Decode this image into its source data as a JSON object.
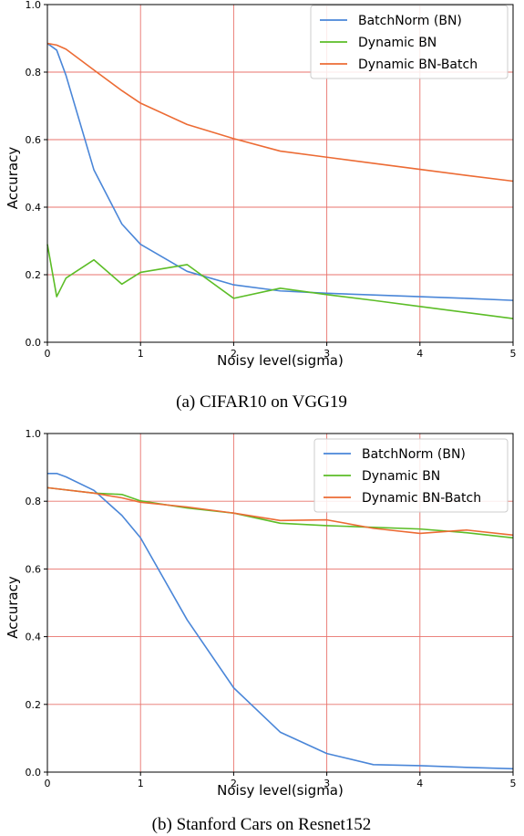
{
  "chart_data": [
    {
      "type": "line",
      "caption": "(a) CIFAR10 on VGG19",
      "xlabel": "Noisy level(sigma)",
      "ylabel": "Accuracy",
      "xlim": [
        0,
        5
      ],
      "ylim": [
        0,
        1.0
      ],
      "xticks": [
        "0",
        "1",
        "2",
        "3",
        "4",
        "5"
      ],
      "yticks": [
        "0.0",
        "0.2",
        "0.4",
        "0.6",
        "0.8",
        "1.0"
      ],
      "grid": true,
      "legend_position": "top-right",
      "series": [
        {
          "name": "BatchNorm (BN)",
          "color": "#4a86d8",
          "x": [
            0,
            0.1,
            0.2,
            0.5,
            0.8,
            1.0,
            1.5,
            2.0,
            2.5,
            3.0,
            3.5,
            4.0,
            4.5,
            5.0
          ],
          "y": [
            0.885,
            0.865,
            0.79,
            0.51,
            0.35,
            0.29,
            0.21,
            0.17,
            0.152,
            0.145,
            0.14,
            0.135,
            0.13,
            0.124
          ]
        },
        {
          "name": "Dynamic BN",
          "color": "#5cbd27",
          "x": [
            0,
            0.1,
            0.2,
            0.5,
            0.8,
            1.0,
            1.5,
            2.0,
            2.5,
            3.0,
            3.5,
            4.0,
            4.5,
            5.0
          ],
          "y": [
            0.29,
            0.135,
            0.19,
            0.244,
            0.172,
            0.207,
            0.23,
            0.13,
            0.16,
            0.141,
            0.124,
            0.106,
            0.088,
            0.07
          ]
        },
        {
          "name": "Dynamic BN-Batch",
          "color": "#ec6b34",
          "x": [
            0,
            0.1,
            0.2,
            0.5,
            0.8,
            1.0,
            1.5,
            2.0,
            2.5,
            3.0,
            3.5,
            4.0,
            4.5,
            5.0
          ],
          "y": [
            0.885,
            0.88,
            0.868,
            0.806,
            0.745,
            0.708,
            0.645,
            0.603,
            0.566,
            0.548,
            0.53,
            0.512,
            0.494,
            0.477
          ]
        }
      ]
    },
    {
      "type": "line",
      "caption": "(b) Stanford Cars on Resnet152",
      "xlabel": "Noisy level(sigma)",
      "ylabel": "Accuracy",
      "xlim": [
        0,
        5
      ],
      "ylim": [
        0,
        1.0
      ],
      "xticks": [
        "0",
        "1",
        "2",
        "3",
        "4",
        "5"
      ],
      "yticks": [
        "0.0",
        "0.2",
        "0.4",
        "0.6",
        "0.8",
        "1.0"
      ],
      "grid": true,
      "legend_position": "top-right",
      "series": [
        {
          "name": "BatchNorm (BN)",
          "color": "#4a86d8",
          "x": [
            0,
            0.1,
            0.2,
            0.5,
            0.8,
            1.0,
            1.5,
            2.0,
            2.5,
            3.0,
            3.5,
            4.0,
            4.5,
            5.0
          ],
          "y": [
            0.882,
            0.882,
            0.872,
            0.832,
            0.758,
            0.692,
            0.45,
            0.249,
            0.118,
            0.055,
            0.022,
            0.019,
            0.014,
            0.01
          ]
        },
        {
          "name": "Dynamic BN",
          "color": "#5cbd27",
          "x": [
            0,
            0.5,
            0.8,
            1.0,
            1.5,
            2.0,
            2.5,
            3.0,
            3.5,
            4.0,
            4.5,
            5.0
          ],
          "y": [
            0.84,
            0.824,
            0.82,
            0.801,
            0.78,
            0.765,
            0.735,
            0.728,
            0.723,
            0.718,
            0.707,
            0.692
          ]
        },
        {
          "name": "Dynamic BN-Batch",
          "color": "#ec6b34",
          "x": [
            0,
            0.5,
            0.8,
            1.0,
            1.5,
            2.0,
            2.5,
            3.0,
            3.5,
            4.0,
            4.5,
            5.0
          ],
          "y": [
            0.84,
            0.824,
            0.81,
            0.797,
            0.783,
            0.765,
            0.743,
            0.745,
            0.72,
            0.705,
            0.715,
            0.7
          ]
        }
      ]
    }
  ]
}
